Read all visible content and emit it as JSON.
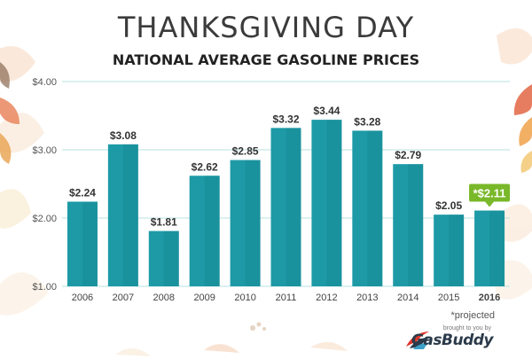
{
  "header": {
    "title": "THANKSGIVING DAY",
    "subtitle": "NATIONAL AVERAGE GASOLINE PRICES"
  },
  "footnote": "*projected",
  "brand": {
    "tagline": "brought to you by",
    "name": "GasBuddy",
    "icon": "gasbuddy-logo-icon"
  },
  "colors": {
    "bar": "#1d9aa6",
    "bar_dark": "#16848e",
    "grid": "#b7e0e0",
    "highlight_label_bg": "#79b829",
    "accent_brand": "#e0352b"
  },
  "chart_data": {
    "type": "bar",
    "title": "THANKSGIVING DAY",
    "subtitle": "NATIONAL AVERAGE GASOLINE PRICES",
    "xlabel": "",
    "ylabel": "",
    "categories": [
      "2006",
      "2007",
      "2008",
      "2009",
      "2010",
      "2011",
      "2012",
      "2013",
      "2014",
      "2015",
      "2016"
    ],
    "values": [
      2.24,
      3.08,
      1.81,
      2.62,
      2.85,
      3.32,
      3.44,
      3.28,
      2.79,
      2.05,
      2.11
    ],
    "data_labels": [
      "$2.24",
      "$3.08",
      "$1.81",
      "$2.62",
      "$2.85",
      "$3.32",
      "$3.44",
      "$3.28",
      "$2.79",
      "$2.05",
      "*$2.11"
    ],
    "highlight_index": 10,
    "yticks": [
      1,
      2,
      3,
      4
    ],
    "ytick_labels": [
      "$1.00",
      "$2.00",
      "$3.00",
      "$4.00"
    ],
    "ylim": [
      1,
      4
    ],
    "grid": true,
    "legend": "none"
  }
}
